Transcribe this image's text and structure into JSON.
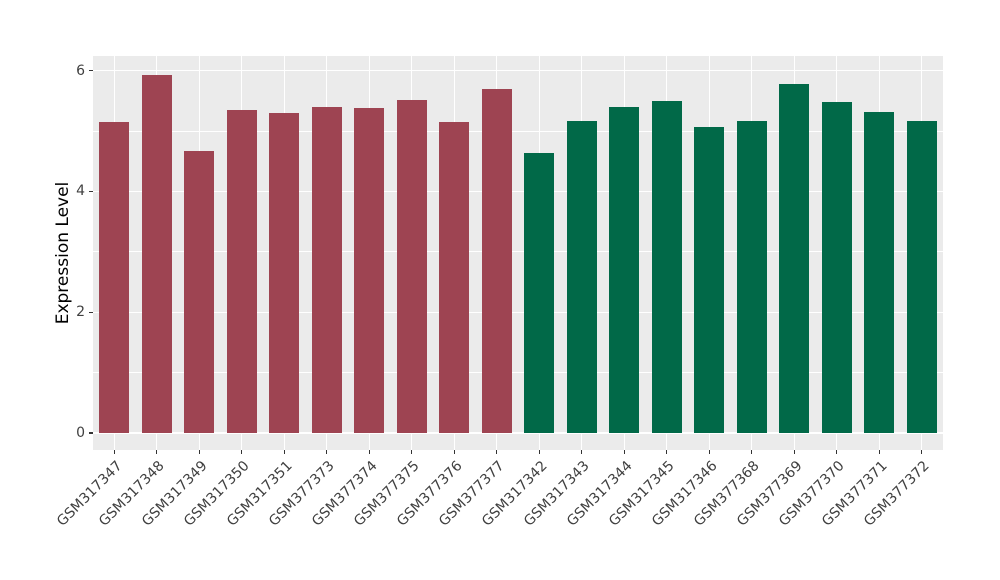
{
  "figure": {
    "background": "#FFFFFF",
    "panel_background": "#EBEBEB",
    "grid_color": "#FFFFFF",
    "tick_mark_color": "#333333",
    "tick_label_color": "#404040",
    "axis_title_color": "#000000"
  },
  "chart_data": {
    "type": "bar",
    "title": "",
    "xlabel": "",
    "ylabel": "Expression Level",
    "categories": [
      "GSM317347",
      "GSM317348",
      "GSM317349",
      "GSM317350",
      "GSM317351",
      "GSM377373",
      "GSM377374",
      "GSM377375",
      "GSM377376",
      "GSM377377",
      "GSM317342",
      "GSM317343",
      "GSM317344",
      "GSM317345",
      "GSM317346",
      "GSM377368",
      "GSM377369",
      "GSM377370",
      "GSM377371",
      "GSM377372"
    ],
    "values": [
      5.14,
      5.93,
      4.67,
      5.35,
      5.29,
      5.4,
      5.38,
      5.51,
      5.15,
      5.7,
      4.64,
      5.17,
      5.39,
      5.5,
      5.06,
      5.17,
      5.77,
      5.48,
      5.31,
      5.17
    ],
    "groups": [
      "dark_red",
      "dark_red",
      "dark_red",
      "dark_red",
      "dark_red",
      "dark_red",
      "dark_red",
      "dark_red",
      "dark_red",
      "dark_red",
      "dark_green",
      "dark_green",
      "dark_green",
      "dark_green",
      "dark_green",
      "dark_green",
      "dark_green",
      "dark_green",
      "dark_green",
      "dark_green"
    ],
    "group_colors": {
      "dark_red": "#9E4452",
      "dark_green": "#016948"
    },
    "yticks": [
      0,
      2,
      4,
      6
    ],
    "minor_yticks": [
      1,
      3,
      5
    ],
    "ylim": [
      -0.28,
      6.24
    ],
    "grid": true,
    "legend": false,
    "bar_width_fraction": 0.7,
    "x_tick_rotation_deg": 45
  }
}
